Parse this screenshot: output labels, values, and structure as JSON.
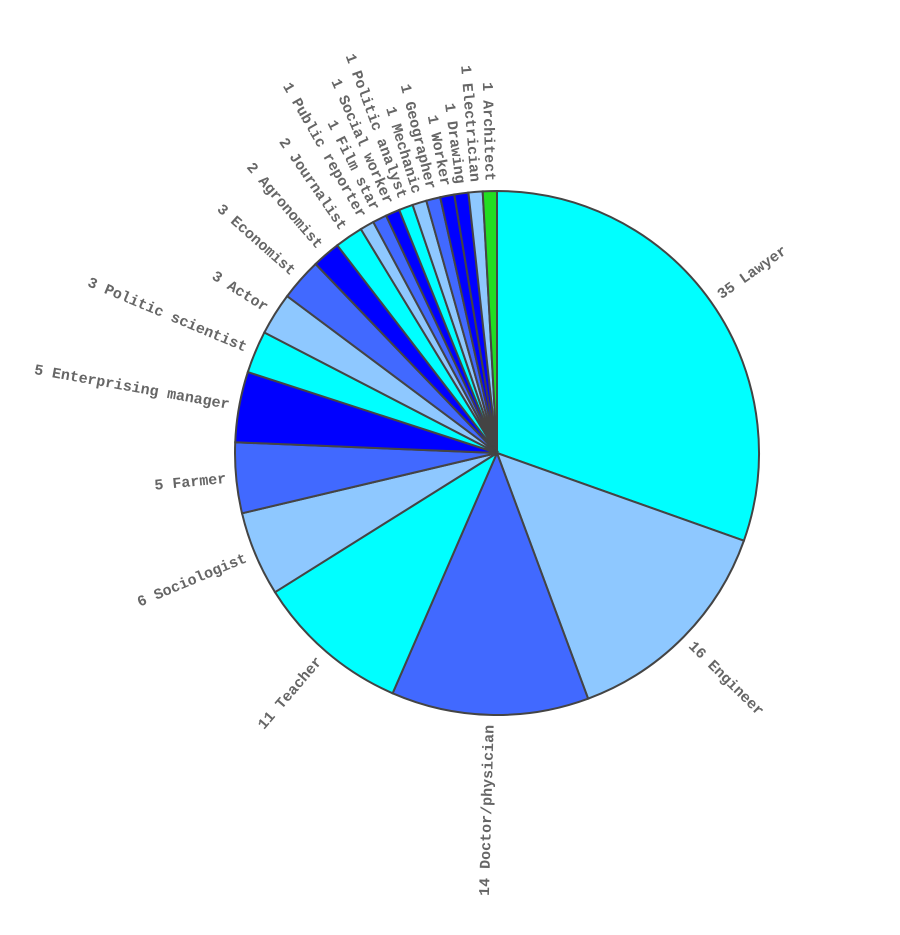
{
  "chart_data": {
    "type": "pie",
    "categories": [
      "Lawyer",
      "Engineer",
      "Doctor/physician",
      "Teacher",
      "Sociologist",
      "Farmer",
      "Enterprising manager",
      "Politic scientist",
      "Actor",
      "Economist",
      "Agronomist",
      "Journalist",
      "Public reporter",
      "Film star",
      "Social worker",
      "Politic analyst",
      "Mechanic",
      "Geographer",
      "Worker",
      "Drawing",
      "Electrician",
      "Architect"
    ],
    "values": [
      35,
      16,
      14,
      11,
      6,
      5,
      5,
      3,
      3,
      3,
      2,
      2,
      1,
      1,
      1,
      1,
      1,
      1,
      1,
      1,
      1,
      1
    ],
    "colors": [
      "#00ffff",
      "#8ec8ff",
      "#4169ff",
      "#00ffff",
      "#8ec8ff",
      "#4169ff",
      "#0000ff",
      "#00ffff",
      "#8ec8ff",
      "#4169ff",
      "#0000ff",
      "#00ffff",
      "#8ec8ff",
      "#4169ff",
      "#0000ff",
      "#00ffff",
      "#8ec8ff",
      "#4169ff",
      "#0000ff",
      "#0000ff",
      "#8ec8ff",
      "#22dd22"
    ]
  }
}
